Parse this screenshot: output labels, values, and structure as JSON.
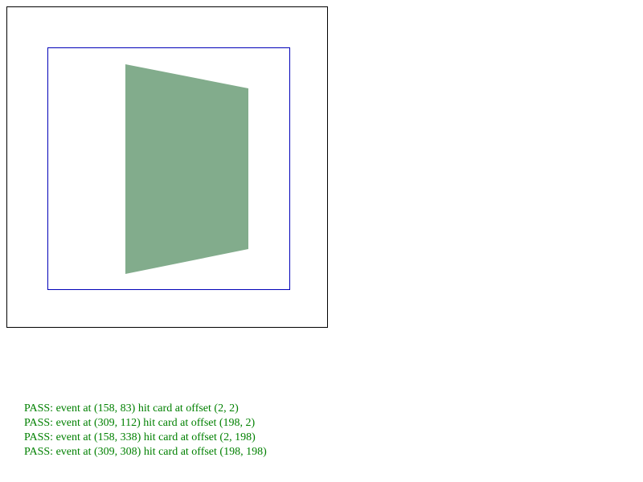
{
  "colors": {
    "outer_border": "#000000",
    "inner_border": "#0000b8",
    "card_fill": "#82ac8c",
    "pass_text": "#008000"
  },
  "results": [
    "PASS: event at (158, 83) hit card at offset (2, 2)",
    "PASS: event at (309, 112) hit card at offset (198, 2)",
    "PASS: event at (158, 338) hit card at offset (2, 198)",
    "PASS: event at (309, 308) hit card at offset (198, 198)"
  ]
}
